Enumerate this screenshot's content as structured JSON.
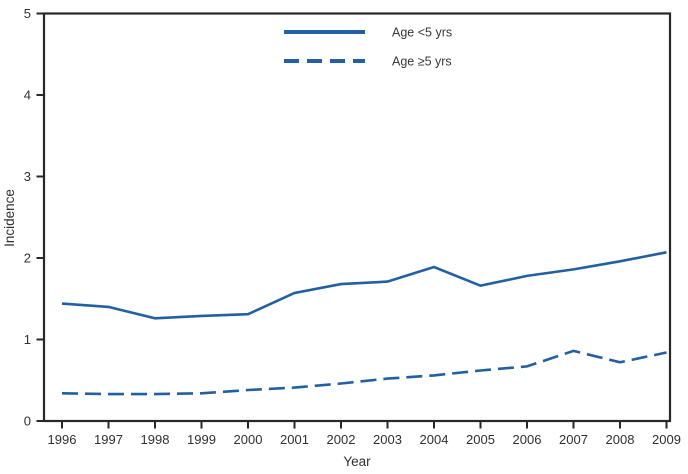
{
  "chart_data": {
    "type": "line",
    "title": "",
    "xlabel": "Year",
    "ylabel": "Incidence",
    "ylim": [
      0,
      5
    ],
    "yticks": [
      0,
      1,
      2,
      3,
      4,
      5
    ],
    "grid": false,
    "legend_position": "top-center-inside",
    "line_color": "#2160a3",
    "axis_color": "#2b2627",
    "categories": [
      "1996",
      "1997",
      "1998",
      "1999",
      "2000",
      "2001",
      "2002",
      "2003",
      "2004",
      "2005",
      "2006",
      "2007",
      "2008",
      "2009"
    ],
    "series": [
      {
        "name": "Age <5 yrs",
        "style": "solid",
        "values": [
          1.44,
          1.4,
          1.26,
          1.29,
          1.31,
          1.57,
          1.68,
          1.71,
          1.89,
          1.66,
          1.78,
          1.86,
          1.96,
          2.07
        ]
      },
      {
        "name": "Age ≥5 yrs",
        "style": "dashed",
        "values": [
          0.34,
          0.33,
          0.33,
          0.34,
          0.38,
          0.41,
          0.46,
          0.52,
          0.56,
          0.62,
          0.67,
          0.86,
          0.72,
          0.84
        ]
      }
    ]
  }
}
